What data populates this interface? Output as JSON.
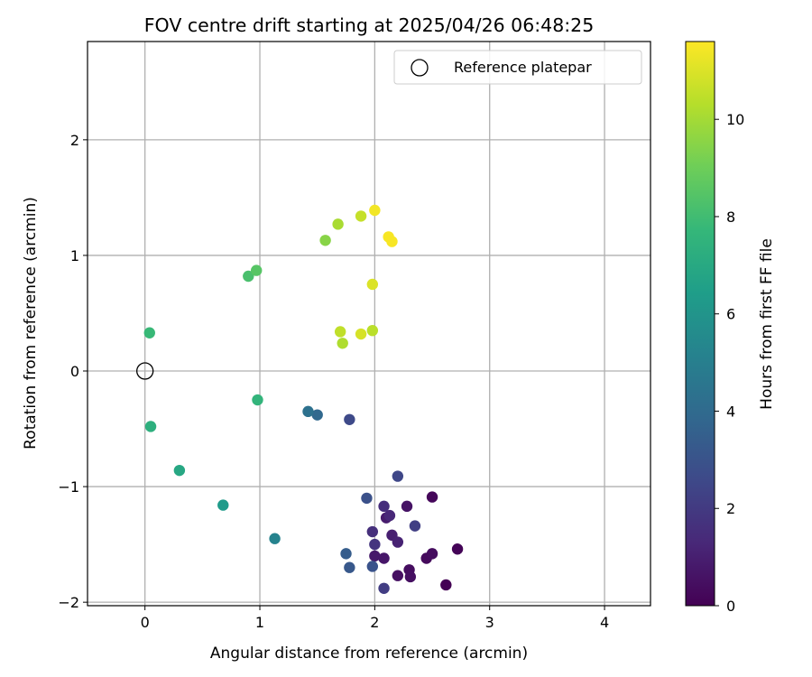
{
  "chart_data": {
    "type": "scatter",
    "title": "FOV centre drift starting at 2025/04/26 06:48:25",
    "xlabel": "Angular distance from reference (arcmin)",
    "ylabel": "Rotation from reference (arcmin)",
    "xlim": [
      -0.5,
      4.4
    ],
    "ylim": [
      -2.03,
      2.85
    ],
    "xticks": [
      0,
      1,
      2,
      3,
      4
    ],
    "xtick_labels": [
      "0",
      "1",
      "2",
      "3",
      "4"
    ],
    "yticks": [
      2,
      1,
      0,
      -1,
      -2
    ],
    "ytick_labels": [
      "2",
      "1",
      "0",
      "−1",
      "−2"
    ],
    "grid": true,
    "legend": {
      "placement": "top-right",
      "entries": [
        "Reference platepar"
      ]
    },
    "reference_point": {
      "label": "Reference platepar",
      "x": 0,
      "y": 0,
      "marker": "open-circle"
    },
    "colorbar": {
      "label": "Hours from first FF file",
      "range": [
        0,
        11.6
      ],
      "ticks": [
        0,
        2,
        4,
        6,
        8,
        10
      ],
      "tick_labels": [
        "0",
        "2",
        "4",
        "6",
        "8",
        "10"
      ],
      "colormap": "viridis",
      "stops": [
        "#440154",
        "#482878",
        "#3e4989",
        "#31688e",
        "#26828e",
        "#1f9e89",
        "#35b779",
        "#6ece58",
        "#b5de2b",
        "#fde725"
      ]
    },
    "series": [
      {
        "marker": "filled-circle",
        "points": [
          {
            "x": 2.62,
            "y": -1.85,
            "hours": 0.0
          },
          {
            "x": 2.72,
            "y": -1.54,
            "hours": 0.1
          },
          {
            "x": 2.5,
            "y": -1.09,
            "hours": 0.2
          },
          {
            "x": 2.45,
            "y": -1.62,
            "hours": 0.3
          },
          {
            "x": 2.5,
            "y": -1.58,
            "hours": 0.35
          },
          {
            "x": 2.3,
            "y": -1.72,
            "hours": 0.4
          },
          {
            "x": 2.31,
            "y": -1.78,
            "hours": 0.45
          },
          {
            "x": 2.2,
            "y": -1.77,
            "hours": 0.5
          },
          {
            "x": 2.28,
            "y": -1.17,
            "hours": 0.6
          },
          {
            "x": 2.08,
            "y": -1.62,
            "hours": 0.7
          },
          {
            "x": 2.0,
            "y": -1.6,
            "hours": 0.8
          },
          {
            "x": 2.1,
            "y": -1.27,
            "hours": 0.9
          },
          {
            "x": 2.15,
            "y": -1.42,
            "hours": 1.0
          },
          {
            "x": 2.2,
            "y": -1.48,
            "hours": 1.1
          },
          {
            "x": 2.13,
            "y": -1.25,
            "hours": 1.3
          },
          {
            "x": 2.08,
            "y": -1.17,
            "hours": 1.5
          },
          {
            "x": 1.98,
            "y": -1.39,
            "hours": 1.6
          },
          {
            "x": 2.0,
            "y": -1.5,
            "hours": 1.8
          },
          {
            "x": 2.08,
            "y": -1.88,
            "hours": 2.1
          },
          {
            "x": 2.35,
            "y": -1.34,
            "hours": 2.2
          },
          {
            "x": 2.2,
            "y": -0.91,
            "hours": 2.5
          },
          {
            "x": 1.78,
            "y": -0.42,
            "hours": 2.6
          },
          {
            "x": 1.98,
            "y": -1.69,
            "hours": 3.0
          },
          {
            "x": 1.78,
            "y": -1.7,
            "hours": 3.2
          },
          {
            "x": 1.75,
            "y": -1.58,
            "hours": 3.4
          },
          {
            "x": 1.93,
            "y": -1.1,
            "hours": 2.9
          },
          {
            "x": 1.5,
            "y": -0.38,
            "hours": 3.9
          },
          {
            "x": 1.42,
            "y": -0.35,
            "hours": 4.3
          },
          {
            "x": 1.13,
            "y": -1.45,
            "hours": 5.2
          },
          {
            "x": 0.68,
            "y": -1.16,
            "hours": 6.3
          },
          {
            "x": 0.05,
            "y": -0.48,
            "hours": 7.3
          },
          {
            "x": 0.3,
            "y": -0.86,
            "hours": 6.9
          },
          {
            "x": 0.04,
            "y": 0.33,
            "hours": 7.8
          },
          {
            "x": 0.98,
            "y": -0.25,
            "hours": 7.6
          },
          {
            "x": 0.9,
            "y": 0.82,
            "hours": 8.2
          },
          {
            "x": 0.97,
            "y": 0.87,
            "hours": 8.5
          },
          {
            "x": 1.57,
            "y": 1.13,
            "hours": 9.5
          },
          {
            "x": 1.68,
            "y": 1.27,
            "hours": 10.1
          },
          {
            "x": 1.88,
            "y": 1.34,
            "hours": 10.6
          },
          {
            "x": 2.0,
            "y": 1.39,
            "hours": 11.4
          },
          {
            "x": 2.12,
            "y": 1.16,
            "hours": 11.5
          },
          {
            "x": 2.15,
            "y": 1.12,
            "hours": 11.5
          },
          {
            "x": 1.98,
            "y": 0.75,
            "hours": 11.0
          },
          {
            "x": 1.98,
            "y": 0.35,
            "hours": 10.4
          },
          {
            "x": 1.88,
            "y": 0.32,
            "hours": 10.9
          },
          {
            "x": 1.72,
            "y": 0.24,
            "hours": 10.2
          },
          {
            "x": 1.7,
            "y": 0.34,
            "hours": 10.5
          }
        ]
      }
    ]
  }
}
